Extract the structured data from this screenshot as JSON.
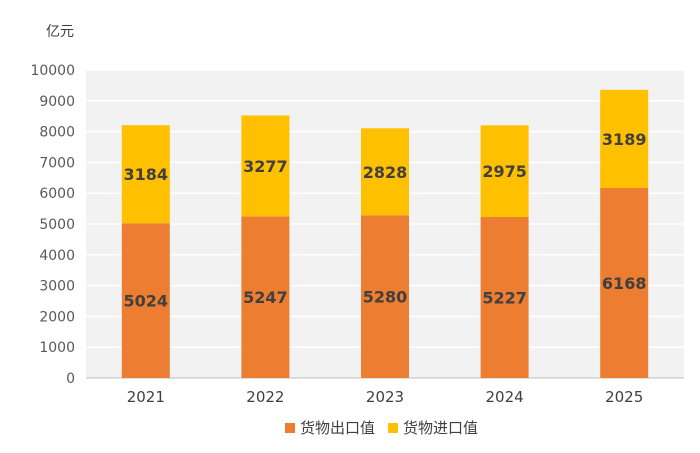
{
  "chart_data": {
    "type": "bar",
    "stacked": true,
    "unit_label": "亿元",
    "categories": [
      "2021",
      "2022",
      "2023",
      "2024",
      "2025"
    ],
    "series": [
      {
        "name": "货物出口值",
        "color": "#ED7D31",
        "values": [
          5024,
          5247,
          5280,
          5227,
          6168
        ]
      },
      {
        "name": "货物进口值",
        "color": "#FFC000",
        "values": [
          3184,
          3277,
          2828,
          2975,
          3189
        ]
      }
    ],
    "ylim": [
      0,
      10000
    ],
    "yticks": [
      0,
      1000,
      2000,
      3000,
      4000,
      5000,
      6000,
      7000,
      8000,
      9000,
      10000
    ],
    "grid": true,
    "legend_position": "bottom"
  }
}
